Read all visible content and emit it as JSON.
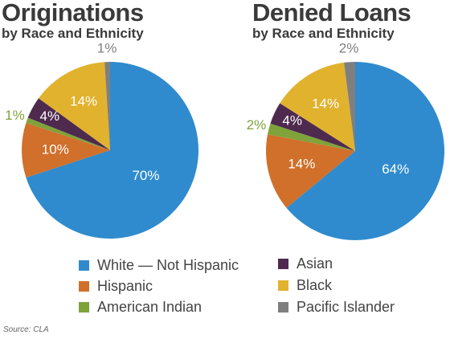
{
  "legend_title": "",
  "source": "Source: CLA",
  "colors": {
    "White — Not Hispanic": "#2f8bcd",
    "Hispanic": "#d0702a",
    "American Indian": "#7fa23a",
    "Asian": "#4e2a4f",
    "Black": "#e1b22d",
    "Pacific Islander": "#7f7f7f"
  },
  "legend": [
    {
      "label": "White — Not Hispanic",
      "color": "#2f8bcd"
    },
    {
      "label": "Hispanic",
      "color": "#d0702a"
    },
    {
      "label": "American Indian",
      "color": "#7fa23a"
    },
    {
      "label": "Asian",
      "color": "#4e2a4f"
    },
    {
      "label": "Black",
      "color": "#e1b22d"
    },
    {
      "label": "Pacific Islander",
      "color": "#7f7f7f"
    }
  ],
  "chart_data": [
    {
      "type": "pie",
      "title": "Originations",
      "subtitle": "by Race and Ethnicity",
      "categories": [
        "White — Not Hispanic",
        "Hispanic",
        "American Indian",
        "Asian",
        "Black",
        "Pacific Islander"
      ],
      "values": [
        70,
        10,
        1,
        4,
        14,
        1
      ],
      "labels": [
        "70%",
        "10%",
        "1%",
        "4%",
        "14%",
        "1%"
      ]
    },
    {
      "type": "pie",
      "title": "Denied Loans",
      "subtitle": "by Race and Ethnicity",
      "categories": [
        "White — Not Hispanic",
        "Hispanic",
        "American Indian",
        "Asian",
        "Black",
        "Pacific Islander"
      ],
      "values": [
        64,
        14,
        2,
        4,
        14,
        2
      ],
      "labels": [
        "64%",
        "14%",
        "2%",
        "4%",
        "14%",
        "2%"
      ]
    }
  ]
}
